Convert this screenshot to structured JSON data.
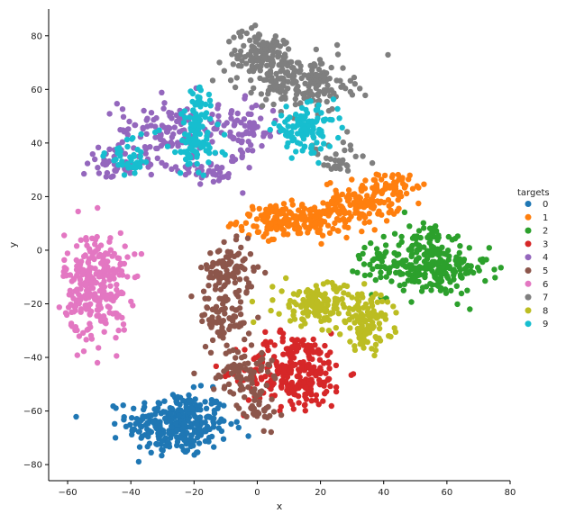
{
  "chart_data": {
    "type": "scatter",
    "xlabel": "x",
    "ylabel": "y",
    "xlim": [
      -66,
      80
    ],
    "ylim": [
      -86,
      90
    ],
    "xticks": [
      -60,
      -40,
      -20,
      0,
      20,
      40,
      60,
      80
    ],
    "yticks": [
      -80,
      -60,
      -40,
      -20,
      0,
      20,
      40,
      60,
      80
    ],
    "grid": false,
    "legend": {
      "title": "targets",
      "position": "right"
    },
    "series": [
      {
        "name": "0",
        "color": "#1f77b4",
        "clusters": [
          {
            "cx": -25,
            "cy": -65,
            "sx": 8,
            "sy": 6,
            "n": 300
          }
        ]
      },
      {
        "name": "1",
        "color": "#ff7f0e",
        "clusters": [
          {
            "cx": 12,
            "cy": 11,
            "sx": 9,
            "sy": 3,
            "n": 200
          },
          {
            "cx": 33,
            "cy": 18,
            "sx": 6,
            "sy": 4,
            "n": 120
          },
          {
            "cx": 44,
            "cy": 25,
            "sx": 3,
            "sy": 2,
            "n": 40
          }
        ]
      },
      {
        "name": "2",
        "color": "#2ca02c",
        "clusters": [
          {
            "cx": 55,
            "cy": -7,
            "sx": 9,
            "sy": 5,
            "n": 200
          },
          {
            "cx": 40,
            "cy": -3,
            "sx": 4,
            "sy": 5,
            "n": 40
          },
          {
            "cx": 55,
            "cy": 5,
            "sx": 3,
            "sy": 3,
            "n": 30
          }
        ]
      },
      {
        "name": "3",
        "color": "#d62728",
        "clusters": [
          {
            "cx": 12,
            "cy": -45,
            "sx": 8,
            "sy": 7,
            "n": 260
          }
        ]
      },
      {
        "name": "4",
        "color": "#9467bd",
        "clusters": [
          {
            "cx": -28,
            "cy": 45,
            "sx": 8,
            "sy": 6,
            "n": 120
          },
          {
            "cx": -45,
            "cy": 32,
            "sx": 5,
            "sy": 3,
            "n": 50
          },
          {
            "cx": -5,
            "cy": 45,
            "sx": 6,
            "sy": 5,
            "n": 80
          },
          {
            "cx": -15,
            "cy": 30,
            "sx": 5,
            "sy": 3,
            "n": 40
          }
        ]
      },
      {
        "name": "5",
        "color": "#8c564b",
        "clusters": [
          {
            "cx": -9,
            "cy": -8,
            "sx": 4,
            "sy": 5,
            "n": 100
          },
          {
            "cx": -10,
            "cy": -25,
            "sx": 4,
            "sy": 5,
            "n": 70
          },
          {
            "cx": -5,
            "cy": -45,
            "sx": 5,
            "sy": 4,
            "n": 70
          },
          {
            "cx": 0,
            "cy": -58,
            "sx": 3,
            "sy": 4,
            "n": 40
          }
        ]
      },
      {
        "name": "6",
        "color": "#e377c2",
        "clusters": [
          {
            "cx": -51,
            "cy": -13,
            "sx": 5,
            "sy": 10,
            "n": 280
          }
        ]
      },
      {
        "name": "7",
        "color": "#7f7f7f",
        "clusters": [
          {
            "cx": 2,
            "cy": 72,
            "sx": 6,
            "sy": 5,
            "n": 150
          },
          {
            "cx": 16,
            "cy": 62,
            "sx": 7,
            "sy": 5,
            "n": 150
          },
          {
            "cx": 25,
            "cy": 33,
            "sx": 5,
            "sy": 4,
            "n": 30
          }
        ]
      },
      {
        "name": "8",
        "color": "#bcbd22",
        "clusters": [
          {
            "cx": 20,
            "cy": -20,
            "sx": 7,
            "sy": 4,
            "n": 150
          },
          {
            "cx": 35,
            "cy": -27,
            "sx": 4,
            "sy": 5,
            "n": 100
          }
        ]
      },
      {
        "name": "9",
        "color": "#17becf",
        "clusters": [
          {
            "cx": -20,
            "cy": 40,
            "sx": 4,
            "sy": 6,
            "n": 90
          },
          {
            "cx": -40,
            "cy": 35,
            "sx": 4,
            "sy": 4,
            "n": 40
          },
          {
            "cx": 15,
            "cy": 45,
            "sx": 5,
            "sy": 4,
            "n": 110
          },
          {
            "cx": -18,
            "cy": 55,
            "sx": 2,
            "sy": 3,
            "n": 30
          }
        ]
      }
    ]
  }
}
